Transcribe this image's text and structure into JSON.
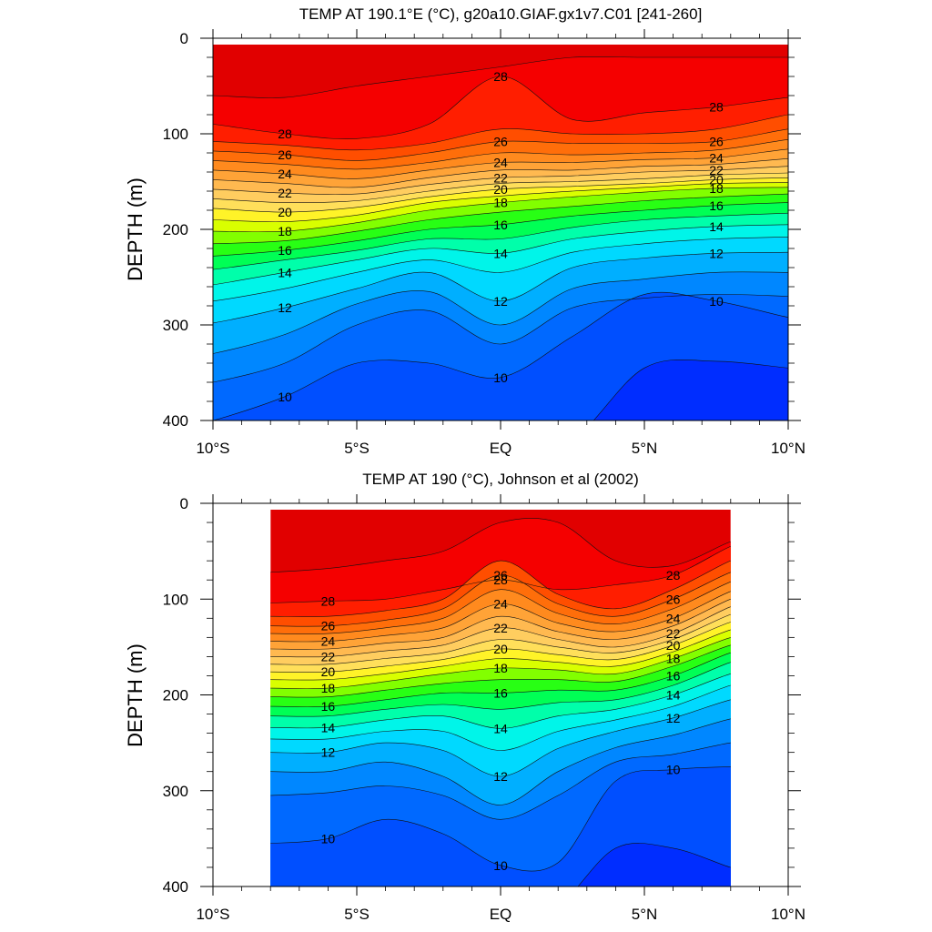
{
  "chart_data": [
    {
      "type": "heatmap",
      "title": "TEMP AT 190.1°E (°C), g20a10.GIAF.gx1v7.C01 [241-260]",
      "ylabel": "DEPTH (m)",
      "xlabel": "",
      "xlim": [
        -10,
        10
      ],
      "ylim": [
        400,
        0
      ],
      "y_reversed": true,
      "x_tick_labels": [
        "10°S",
        "5°S",
        "EQ",
        "5°N",
        "10°N"
      ],
      "y_tick_labels": [
        "0",
        "100",
        "200",
        "300",
        "400"
      ],
      "data_extent": [
        -10,
        10
      ],
      "contour_interval": 1,
      "labeled_contours": [
        10,
        12,
        14,
        16,
        18,
        20,
        22,
        24,
        26,
        28
      ],
      "contour_depths": {
        "x": [
          -10,
          -7.5,
          -5,
          -2.5,
          0,
          2.5,
          5,
          7.5,
          10
        ],
        "levels": [
          {
            "t": 29,
            "d": [
              60,
              62,
              50,
              40,
              30,
              20,
              20,
              20,
              20
            ]
          },
          {
            "t": 28,
            "d": [
              90,
              100,
              105,
              90,
              40,
              85,
              78,
              72,
              62
            ]
          },
          {
            "t": 27,
            "d": [
              108,
              112,
              117,
              110,
              95,
              100,
              100,
              95,
              80
            ]
          },
          {
            "t": 26,
            "d": [
              118,
              122,
              128,
              120,
              108,
              110,
              110,
              108,
              95
            ]
          },
          {
            "t": 25,
            "d": [
              128,
              132,
              137,
              130,
              120,
              122,
              120,
              117,
              106
            ]
          },
          {
            "t": 24,
            "d": [
              138,
              142,
              147,
              138,
              130,
              130,
              127,
              125,
              116
            ]
          },
          {
            "t": 23,
            "d": [
              148,
              152,
              156,
              146,
              138,
              138,
              134,
              132,
              126
            ]
          },
          {
            "t": 22,
            "d": [
              158,
              162,
              163,
              153,
              146,
              144,
              140,
              138,
              134
            ]
          },
          {
            "t": 21,
            "d": [
              168,
              172,
              170,
              160,
              152,
              150,
              147,
              143,
              141
            ]
          },
          {
            "t": 20,
            "d": [
              178,
              182,
              177,
              166,
              158,
              155,
              152,
              148,
              146
            ]
          },
          {
            "t": 19,
            "d": [
              190,
              192,
              185,
              172,
              165,
              160,
              156,
              152,
              151
            ]
          },
          {
            "t": 18,
            "d": [
              202,
              202,
              193,
              180,
              172,
              166,
              161,
              157,
              156
            ]
          },
          {
            "t": 17,
            "d": [
              215,
              212,
              202,
              190,
              182,
              176,
              170,
              166,
              163
            ]
          },
          {
            "t": 16,
            "d": [
              228,
              222,
              212,
              200,
              195,
              186,
              180,
              175,
              172
            ]
          },
          {
            "t": 15,
            "d": [
              242,
              232,
              222,
              210,
              210,
              198,
              190,
              186,
              183
            ]
          },
          {
            "t": 14,
            "d": [
              258,
              245,
              232,
              220,
              225,
              210,
              202,
              197,
              195
            ]
          },
          {
            "t": 13,
            "d": [
              275,
              262,
              245,
              232,
              245,
              224,
              215,
              210,
              208
            ]
          },
          {
            "t": 12,
            "d": [
              298,
              282,
              262,
              245,
              275,
              240,
              230,
              225,
              224
            ]
          },
          {
            "t": 11,
            "d": [
              330,
              310,
              278,
              265,
              300,
              262,
              252,
              245,
              245
            ]
          },
          {
            "t": 10.5,
            "d": [
              360,
              340,
              300,
              285,
              320,
              282,
              272,
              268,
              270
            ]
          },
          {
            "t": 10,
            "d": [
              400,
              375,
              340,
              340,
              355,
              312,
              268,
              275,
              292
            ]
          },
          {
            "t": 9.5,
            "d": [
              460,
              460,
              460,
              460,
              460,
              420,
              345,
              338,
              345
            ]
          }
        ]
      }
    },
    {
      "type": "heatmap",
      "title": "TEMP AT 190 (°C), Johnson et al (2002)",
      "ylabel": "DEPTH (m)",
      "xlabel": "",
      "xlim": [
        -10,
        10
      ],
      "ylim": [
        400,
        0
      ],
      "y_reversed": true,
      "x_tick_labels": [
        "10°S",
        "5°S",
        "EQ",
        "5°N",
        "10°N"
      ],
      "y_tick_labels": [
        "0",
        "100",
        "200",
        "300",
        "400"
      ],
      "data_extent": [
        -8,
        8
      ],
      "contour_interval": 1,
      "labeled_contours": [
        10,
        12,
        14,
        16,
        18,
        20,
        22,
        24,
        26,
        28
      ],
      "contour_depths": {
        "x": [
          -8,
          -6,
          -4,
          -2,
          0,
          2,
          4,
          6,
          8
        ],
        "levels": [
          {
            "t": 29,
            "d": [
              72,
              68,
              60,
              50,
              20,
              20,
              60,
              65,
              40
            ]
          },
          {
            "t": 28,
            "d": [
              104,
              102,
              100,
              90,
              80,
              90,
              85,
              75,
              45
            ]
          },
          {
            "t": 27,
            "d": [
              118,
              118,
              112,
              100,
              60,
              95,
              110,
              90,
              60
            ]
          },
          {
            "t": 26,
            "d": [
              128,
              128,
              122,
              110,
              75,
              105,
              118,
              100,
              72
            ]
          },
          {
            "t": 25,
            "d": [
              136,
              136,
              130,
              120,
              90,
              115,
              126,
              110,
              82
            ]
          },
          {
            "t": 24,
            "d": [
              144,
              144,
              138,
              130,
              105,
              125,
              134,
              120,
              92
            ]
          },
          {
            "t": 23,
            "d": [
              152,
              152,
              146,
              140,
              118,
              134,
              142,
              128,
              100
            ]
          },
          {
            "t": 22,
            "d": [
              160,
              160,
              154,
              148,
              130,
              142,
              150,
              136,
              108
            ]
          },
          {
            "t": 21,
            "d": [
              168,
              168,
              162,
              156,
              142,
              150,
              156,
              142,
              116
            ]
          },
          {
            "t": 20,
            "d": [
              176,
              176,
              170,
              163,
              152,
              158,
              163,
              148,
              124
            ]
          },
          {
            "t": 19,
            "d": [
              184,
              184,
              178,
              170,
              162,
              166,
              170,
              155,
              132
            ]
          },
          {
            "t": 18,
            "d": [
              193,
              193,
              186,
              178,
              172,
              174,
              178,
              162,
              140
            ]
          },
          {
            "t": 17,
            "d": [
              202,
              202,
              195,
              188,
              184,
              184,
              186,
              170,
              148
            ]
          },
          {
            "t": 16,
            "d": [
              212,
              212,
              205,
              198,
              198,
              195,
              195,
              180,
              156
            ]
          },
          {
            "t": 15,
            "d": [
              222,
              222,
              215,
              210,
              215,
              208,
              205,
              190,
              166
            ]
          },
          {
            "t": 14,
            "d": [
              234,
              234,
              226,
              222,
              235,
              222,
              215,
              200,
              178
            ]
          },
          {
            "t": 13,
            "d": [
              246,
              246,
              238,
              238,
              258,
              238,
              226,
              212,
              190
            ]
          },
          {
            "t": 12,
            "d": [
              260,
              260,
              250,
              258,
              285,
              256,
              238,
              224,
              205
            ]
          },
          {
            "t": 11,
            "d": [
              280,
              280,
              270,
              285,
              315,
              280,
              255,
              242,
              225
            ]
          },
          {
            "t": 10.5,
            "d": [
              305,
              302,
              295,
              305,
              330,
              305,
              270,
              262,
              250
            ]
          },
          {
            "t": 10,
            "d": [
              355,
              350,
              330,
              345,
              378,
              375,
              290,
              278,
              275
            ]
          },
          {
            "t": 9.5,
            "d": [
              460,
              460,
              460,
              460,
              460,
              420,
              360,
              360,
              380
            ]
          }
        ]
      }
    }
  ]
}
